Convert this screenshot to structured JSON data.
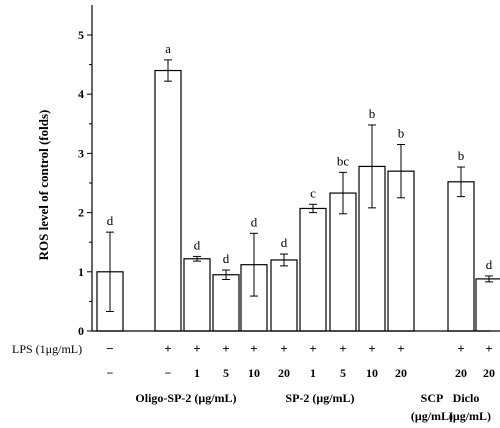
{
  "chart_data": {
    "type": "bar",
    "ylabel": "ROS level of control (folds)",
    "ylim": [
      0,
      5.5
    ],
    "yticks": [
      "0",
      "1",
      "2",
      "3",
      "4",
      "5"
    ],
    "bar_color": "#ffffff",
    "edge_color": "#000000",
    "categories": [
      "ctrl",
      "LPS",
      "Oligo-SP-2 1",
      "Oligo-SP-2 5",
      "Oligo-SP-2 10",
      "Oligo-SP-2 20",
      "SP-2 1",
      "SP-2 5",
      "SP-2 10",
      "SP-2 20",
      "SCP 20",
      "Diclo 20"
    ],
    "values": [
      1.0,
      4.4,
      1.22,
      0.95,
      1.12,
      1.2,
      2.07,
      2.33,
      2.78,
      2.7,
      2.52,
      0.88
    ],
    "errors": [
      0.67,
      0.18,
      0.04,
      0.08,
      0.53,
      0.1,
      0.07,
      0.35,
      0.7,
      0.45,
      0.25,
      0.05
    ],
    "significance": [
      "d",
      "a",
      "d",
      "d",
      "d",
      "d",
      "c",
      "bc",
      "b",
      "b",
      "b",
      "d"
    ]
  },
  "treatment": {
    "lps_label": "LPS (1μg/mL)",
    "lps_row": [
      "−",
      "+",
      "+",
      "+",
      "+",
      "+",
      "+",
      "+",
      "+",
      "+",
      "+",
      "+"
    ],
    "conc_row": [
      "−",
      "−",
      "1",
      "5",
      "10",
      "20",
      "1",
      "5",
      "10",
      "20",
      "20",
      "20"
    ],
    "group_oligo": "Oligo-SP-2 (μg/mL)",
    "group_sp2": "SP-2 (μg/mL)",
    "group_scp_name": "SCP",
    "group_scp_unit": "(μg/mL)",
    "group_diclo_name": "Diclo",
    "group_diclo_unit": "(μg/mL)"
  }
}
